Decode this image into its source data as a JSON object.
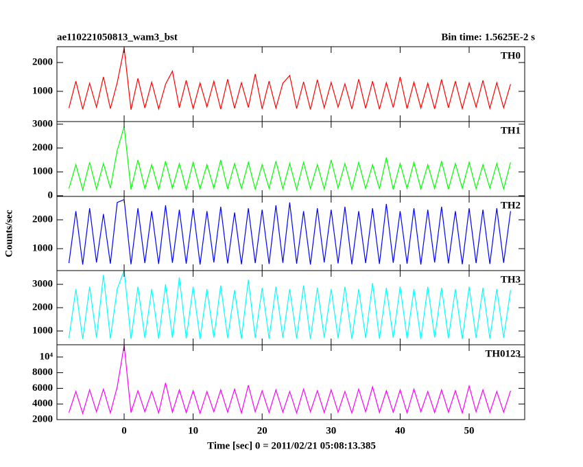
{
  "header": {
    "title": "ae110221050813_wam3_bst",
    "bin_time": "Bin time: 1.5625E-2 s"
  },
  "ylabel": "Counts/sec",
  "xlabel": "Time [sec] 0 = 2011/02/21 05:08:13.385",
  "chart_data": [
    {
      "type": "line",
      "label": "TH0",
      "color": "#ff0000",
      "ylim": [
        -50,
        2550
      ],
      "yticks": [
        1000,
        2000
      ],
      "x": [
        -8,
        -7,
        -6,
        -5,
        -4,
        -3,
        -2,
        -1,
        0,
        1,
        2,
        3,
        4,
        5,
        6,
        7,
        8,
        9,
        10,
        11,
        12,
        13,
        14,
        15,
        16,
        17,
        18,
        19,
        20,
        21,
        22,
        23,
        24,
        25,
        26,
        27,
        28,
        29,
        30,
        31,
        32,
        33,
        34,
        35,
        36,
        37,
        38,
        39,
        40,
        41,
        42,
        43,
        44,
        45,
        46,
        47,
        48,
        49,
        50,
        51,
        52,
        53,
        54,
        55,
        56
      ],
      "values": [
        420,
        1350,
        380,
        1280,
        450,
        1500,
        400,
        1300,
        2500,
        360,
        1450,
        420,
        1320,
        390,
        1250,
        1700,
        430,
        1380,
        400,
        1290,
        460,
        1350,
        380,
        1420,
        410,
        1300,
        440,
        1600,
        390,
        1350,
        420,
        1280,
        1550,
        400,
        1330,
        370,
        1400,
        430,
        1310,
        450,
        1260,
        390,
        1420,
        410,
        1350,
        380,
        1300,
        440,
        1500,
        400,
        1320,
        420,
        1280,
        390,
        1410,
        430,
        1350,
        400,
        1290,
        450,
        1380,
        410,
        1300,
        430,
        1250
      ]
    },
    {
      "type": "line",
      "label": "TH1",
      "color": "#00ff00",
      "ylim": [
        -30,
        3110
      ],
      "yticks": [
        0,
        1000,
        2000,
        3000
      ],
      "x": [
        -8,
        -7,
        -6,
        -5,
        -4,
        -3,
        -2,
        -1,
        0,
        1,
        2,
        3,
        4,
        5,
        6,
        7,
        8,
        9,
        10,
        11,
        12,
        13,
        14,
        15,
        16,
        17,
        18,
        19,
        20,
        21,
        22,
        23,
        24,
        25,
        26,
        27,
        28,
        29,
        30,
        31,
        32,
        33,
        34,
        35,
        36,
        37,
        38,
        39,
        40,
        41,
        42,
        43,
        44,
        45,
        46,
        47,
        48,
        49,
        50,
        51,
        52,
        53,
        54,
        55,
        56
      ],
      "values": [
        300,
        1300,
        250,
        1400,
        280,
        1350,
        320,
        1900,
        2900,
        260,
        1500,
        300,
        1300,
        270,
        1450,
        310,
        1350,
        260,
        1400,
        290,
        1300,
        320,
        1500,
        280,
        1350,
        300,
        1400,
        270,
        1300,
        310,
        1450,
        290,
        1350,
        260,
        1400,
        300,
        1300,
        280,
        1500,
        320,
        1350,
        270,
        1400,
        300,
        1300,
        290,
        1600,
        260,
        1350,
        310,
        1400,
        280,
        1300,
        300,
        1450,
        270,
        1350,
        310,
        1400,
        290,
        1300,
        320,
        1350,
        280,
        1400
      ]
    },
    {
      "type": "line",
      "label": "TH2",
      "color": "#0000ff",
      "ylim": [
        240,
        2810
      ],
      "yticks": [
        1000,
        2000
      ],
      "x": [
        -8,
        -7,
        -6,
        -5,
        -4,
        -3,
        -2,
        -1,
        0,
        1,
        2,
        3,
        4,
        5,
        6,
        7,
        8,
        9,
        10,
        11,
        12,
        13,
        14,
        15,
        16,
        17,
        18,
        19,
        20,
        21,
        22,
        23,
        24,
        25,
        26,
        27,
        28,
        29,
        30,
        31,
        32,
        33,
        34,
        35,
        36,
        37,
        38,
        39,
        40,
        41,
        42,
        43,
        44,
        45,
        46,
        47,
        48,
        49,
        50,
        51,
        52,
        53,
        54,
        55,
        56
      ],
      "values": [
        500,
        2300,
        450,
        2400,
        520,
        2200,
        480,
        2600,
        2700,
        460,
        2400,
        500,
        2300,
        470,
        2500,
        510,
        2350,
        480,
        2400,
        450,
        2300,
        520,
        2450,
        490,
        2250,
        460,
        2400,
        500,
        2350,
        470,
        2500,
        510,
        2600,
        480,
        2300,
        450,
        2400,
        520,
        2350,
        490,
        2450,
        460,
        2300,
        500,
        2400,
        470,
        2550,
        510,
        2300,
        480,
        2400,
        450,
        2350,
        520,
        2450,
        490,
        2300,
        460,
        2400,
        500,
        2350,
        470,
        2400,
        510,
        2300
      ]
    },
    {
      "type": "line",
      "label": "TH3",
      "color": "#00ffff",
      "ylim": [
        410,
        3590
      ],
      "yticks": [
        1000,
        2000,
        3000
      ],
      "x": [
        -8,
        -7,
        -6,
        -5,
        -4,
        -3,
        -2,
        -1,
        0,
        1,
        2,
        3,
        4,
        5,
        6,
        7,
        8,
        9,
        10,
        11,
        12,
        13,
        14,
        15,
        16,
        17,
        18,
        19,
        20,
        21,
        22,
        23,
        24,
        25,
        26,
        27,
        28,
        29,
        30,
        31,
        32,
        33,
        34,
        35,
        36,
        37,
        38,
        39,
        40,
        41,
        42,
        43,
        44,
        45,
        46,
        47,
        48,
        49,
        50,
        51,
        52,
        53,
        54,
        55,
        56
      ],
      "values": [
        700,
        2800,
        650,
        2900,
        720,
        3400,
        680,
        2800,
        3600,
        660,
        2900,
        700,
        2800,
        670,
        3000,
        710,
        3300,
        680,
        2900,
        650,
        2800,
        720,
        2950,
        690,
        2750,
        660,
        3200,
        700,
        2850,
        670,
        2900,
        710,
        2800,
        680,
        2950,
        650,
        2850,
        720,
        2800,
        690,
        2900,
        660,
        2800,
        700,
        3050,
        670,
        2850,
        710,
        2900,
        680,
        2800,
        650,
        2900,
        720,
        2850,
        690,
        2800,
        660,
        2900,
        700,
        2850,
        670,
        2800,
        710,
        2750
      ]
    },
    {
      "type": "line",
      "label": "TH0123",
      "color": "#ff00ff",
      "ylim": [
        2000,
        11570
      ],
      "yticks": [
        2000,
        4000,
        6000,
        8000,
        {
          "value": 10000,
          "label": "10⁴"
        }
      ],
      "xlim": [
        -9.74,
        58.05
      ],
      "xticks": [
        0,
        10,
        20,
        30,
        40,
        50
      ],
      "x": [
        -8,
        -7,
        -6,
        -5,
        -4,
        -3,
        -2,
        -1,
        0,
        1,
        2,
        3,
        4,
        5,
        6,
        7,
        8,
        9,
        10,
        11,
        12,
        13,
        14,
        15,
        16,
        17,
        18,
        19,
        20,
        21,
        22,
        23,
        24,
        25,
        26,
        27,
        28,
        29,
        30,
        31,
        32,
        33,
        34,
        35,
        36,
        37,
        38,
        39,
        40,
        41,
        42,
        43,
        44,
        45,
        46,
        47,
        48,
        49,
        50,
        51,
        52,
        53,
        54,
        55,
        56
      ],
      "values": [
        2900,
        5600,
        2800,
        5800,
        3000,
        5900,
        2850,
        6200,
        11500,
        2900,
        5700,
        3000,
        5600,
        2850,
        6700,
        2950,
        5800,
        2900,
        5700,
        2800,
        5600,
        3000,
        5800,
        2950,
        5900,
        2850,
        6400,
        3000,
        5700,
        2900,
        5800,
        2950,
        5600,
        2850,
        5900,
        3000,
        5700,
        2900,
        5800,
        2950,
        5600,
        2850,
        5900,
        3000,
        6200,
        2900,
        5700,
        2950,
        5800,
        2850,
        5900,
        3000,
        5600,
        2900,
        5800,
        2950,
        5700,
        2850,
        6300,
        3000,
        5800,
        2900,
        5600,
        2950,
        5700
      ]
    }
  ]
}
